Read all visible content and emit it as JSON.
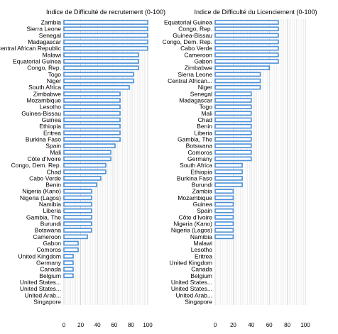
{
  "chart_data": [
    {
      "type": "bar",
      "orientation": "horizontal",
      "title": "Indice de Difficulté de recrutement (0-100)",
      "xlim": [
        0,
        100
      ],
      "ticks": [
        "0",
        "20",
        "40",
        "60",
        "80",
        "100"
      ],
      "grid": true,
      "bar_color": "#4a90d9",
      "bar_fill": "#ffffff",
      "categories": [
        "Zambia",
        "Sierra Leone",
        "Senegal",
        "Madagascar",
        "Central African Republic",
        "Malawi",
        "Equatorial Guinea",
        "Congo, Rep.",
        "Togo",
        "Niger",
        "South Africa",
        "Zimbabwe",
        "Mozambique",
        "Lesotho",
        "Guinea-Bissau",
        "Guinea",
        "Ethiopia",
        "Eritrea",
        "Burkina Faso",
        "Spain",
        "Mali",
        "Côte d'Ivoire",
        "Congo, Dem. Rep.",
        "Chad",
        "Cabo Verde",
        "Benin",
        "Nigeria (Kano)",
        "Nigeria (Lagos)",
        "Namibia",
        "Liberia",
        "Gambia, The",
        "Burundi",
        "Botswana",
        "Cameroon",
        "Gabon",
        "Comoros",
        "United Kingdom",
        "Germany",
        "Canada",
        "Belgium",
        "United States...",
        "United States...",
        "United Arab...",
        "Singapore"
      ],
      "values": [
        100,
        100,
        100,
        100,
        100,
        89,
        89,
        89,
        83,
        83,
        78,
        67,
        67,
        67,
        67,
        67,
        67,
        67,
        67,
        61,
        56,
        56,
        50,
        50,
        44,
        39,
        33,
        33,
        33,
        33,
        33,
        33,
        33,
        28,
        17,
        17,
        11,
        11,
        11,
        11,
        0,
        0,
        0,
        0
      ]
    },
    {
      "type": "bar",
      "orientation": "horizontal",
      "title": "Indice de Difficulté du Licenciement (0-100)",
      "xlim": [
        0,
        100
      ],
      "ticks": [
        "0",
        "20",
        "40",
        "60",
        "80",
        "100"
      ],
      "grid": true,
      "bar_color": "#4a90d9",
      "bar_fill": "#ffffff",
      "categories": [
        "Equatorial Guinea",
        "Congo, Rep.",
        "Guinea-Bissau",
        "Congo, Dem. Rep.",
        "Cabo Verde",
        "Cameroon",
        "Gabon",
        "Zimbabwe",
        "Sierra Leone",
        "Central African...",
        "Niger",
        "Senegal",
        "Madagascar",
        "Togo",
        "Mali",
        "Chad",
        "Benin",
        "Liberia",
        "Gambia, The",
        "Botswana",
        "Comoros",
        "Germany",
        "South Africa",
        "Ethiopia",
        "Burkina Faso",
        "Burundi",
        "Zambia",
        "Mozambique",
        "Guinea",
        "Spain",
        "Côte d'Ivoire",
        "Nigeria (Kano)",
        "Nigeria (Lagos)",
        "Namibia",
        "Malawi",
        "Lesotho",
        "Eritrea",
        "United Kingdom",
        "Canada",
        "Belgium",
        "United States...",
        "United States...",
        "United Arab...",
        "Singapore"
      ],
      "values": [
        70,
        70,
        70,
        70,
        70,
        70,
        70,
        60,
        50,
        50,
        50,
        40,
        40,
        40,
        40,
        40,
        40,
        40,
        40,
        40,
        40,
        40,
        30,
        30,
        30,
        30,
        20,
        20,
        20,
        20,
        20,
        20,
        20,
        20,
        0,
        0,
        0,
        0,
        0,
        0,
        0,
        0,
        0,
        0
      ]
    }
  ]
}
